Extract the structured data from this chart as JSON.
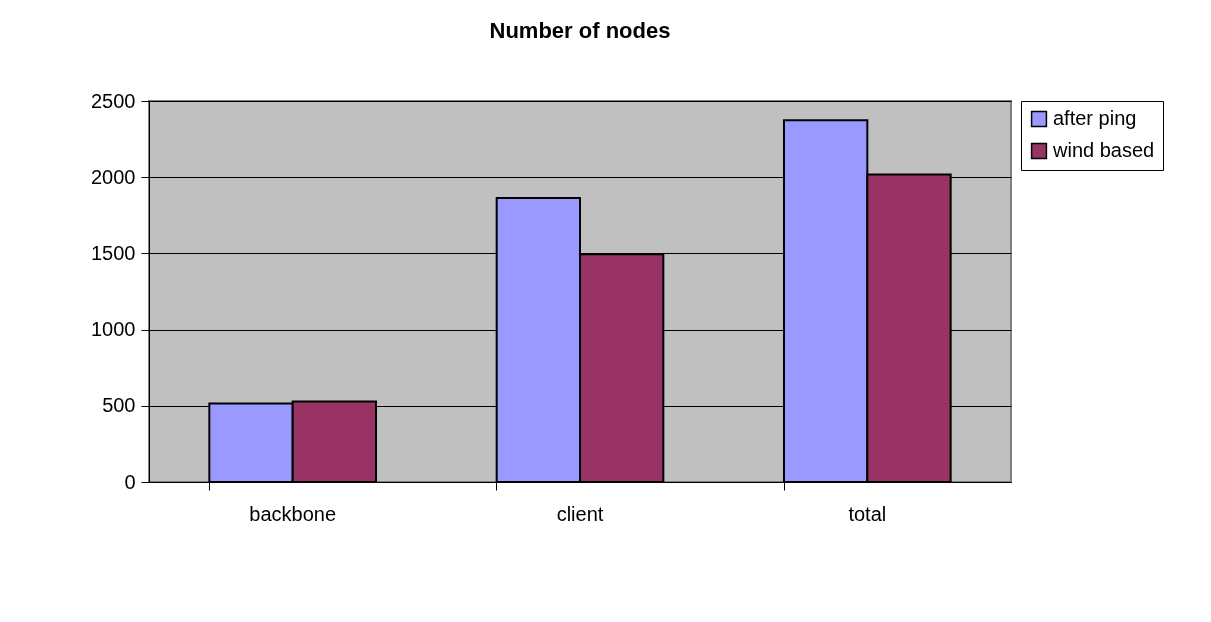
{
  "chart_data": {
    "type": "bar",
    "title": "Number of nodes",
    "categories": [
      "backbone",
      "client",
      "total"
    ],
    "series": [
      {
        "name": "after ping",
        "color": "#9999ff",
        "values": [
          515,
          1863,
          2374
        ]
      },
      {
        "name": "wind based",
        "color": "#993366",
        "values": [
          528,
          1495,
          2017
        ]
      }
    ],
    "ylim": [
      0,
      2500
    ],
    "yticks": [
      0,
      500,
      1000,
      1500,
      2000,
      2500
    ],
    "grid": "y",
    "legend": "right"
  }
}
